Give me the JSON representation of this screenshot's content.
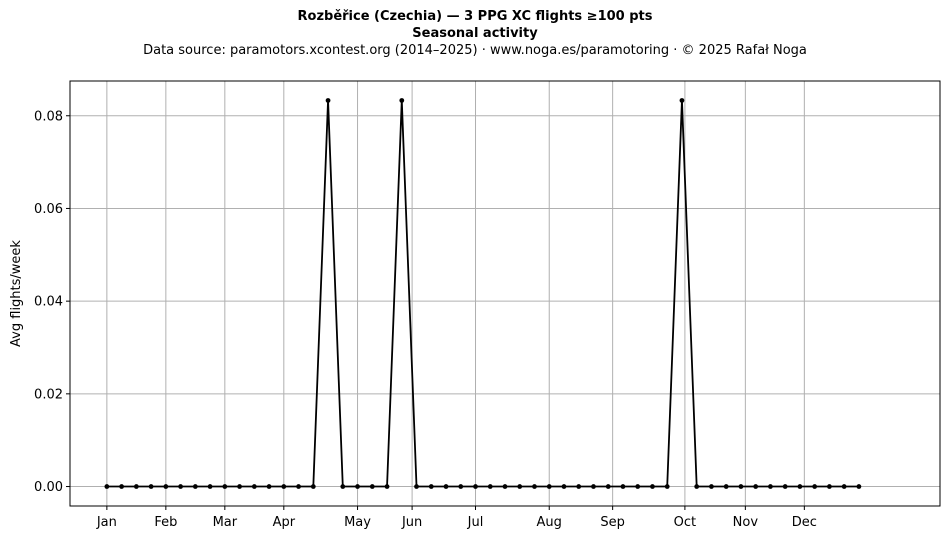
{
  "chart_data": {
    "type": "line",
    "title_line1": "Rozběřice (Czechia)  —  3 PPG XC flights ≥100 pts",
    "title_line2": "Seasonal activity",
    "subtitle": "Data source: paramotors.xcontest.org (2014–2025)  ·  www.noga.es/paramotoring  ·  © 2025 Rafał Noga",
    "xlabel": "",
    "ylabel": "Avg flights/week",
    "x": [
      1,
      2,
      3,
      4,
      5,
      6,
      7,
      8,
      9,
      10,
      11,
      12,
      13,
      14,
      15,
      16,
      17,
      18,
      19,
      20,
      21,
      22,
      23,
      24,
      25,
      26,
      27,
      28,
      29,
      30,
      31,
      32,
      33,
      34,
      35,
      36,
      37,
      38,
      39,
      40,
      41,
      42,
      43,
      44,
      45,
      46,
      47,
      48,
      49,
      50,
      51,
      52
    ],
    "xlim": [
      -1.5,
      57.5
    ],
    "ylim": [
      -0.0042,
      0.0875
    ],
    "x_ticks": [
      {
        "value": 1,
        "label": "Jan"
      },
      {
        "value": 5,
        "label": "Feb"
      },
      {
        "value": 9,
        "label": "Mar"
      },
      {
        "value": 13,
        "label": "Apr"
      },
      {
        "value": 18,
        "label": "May"
      },
      {
        "value": 21.7,
        "label": "Jun"
      },
      {
        "value": 26,
        "label": "Jul"
      },
      {
        "value": 31,
        "label": "Aug"
      },
      {
        "value": 35.3,
        "label": "Sep"
      },
      {
        "value": 40.2,
        "label": "Oct"
      },
      {
        "value": 44.3,
        "label": "Nov"
      },
      {
        "value": 48.3,
        "label": "Dec"
      }
    ],
    "y_ticks": [
      {
        "value": 0.0,
        "label": "0.00"
      },
      {
        "value": 0.02,
        "label": "0.02"
      },
      {
        "value": 0.04,
        "label": "0.04"
      },
      {
        "value": 0.06,
        "label": "0.06"
      },
      {
        "value": 0.08,
        "label": "0.08"
      }
    ],
    "grid": true,
    "series": [
      {
        "color": "#000000",
        "values": [
          0,
          0,
          0,
          0,
          0,
          0,
          0,
          0,
          0,
          0,
          0,
          0,
          0,
          0,
          0,
          0.0833,
          0,
          0,
          0,
          0,
          0.0833,
          0,
          0,
          0,
          0,
          0,
          0,
          0,
          0,
          0,
          0,
          0,
          0,
          0,
          0,
          0,
          0,
          0,
          0,
          0.0833,
          0,
          0,
          0,
          0,
          0,
          0,
          0,
          0,
          0,
          0,
          0,
          0
        ]
      }
    ]
  }
}
